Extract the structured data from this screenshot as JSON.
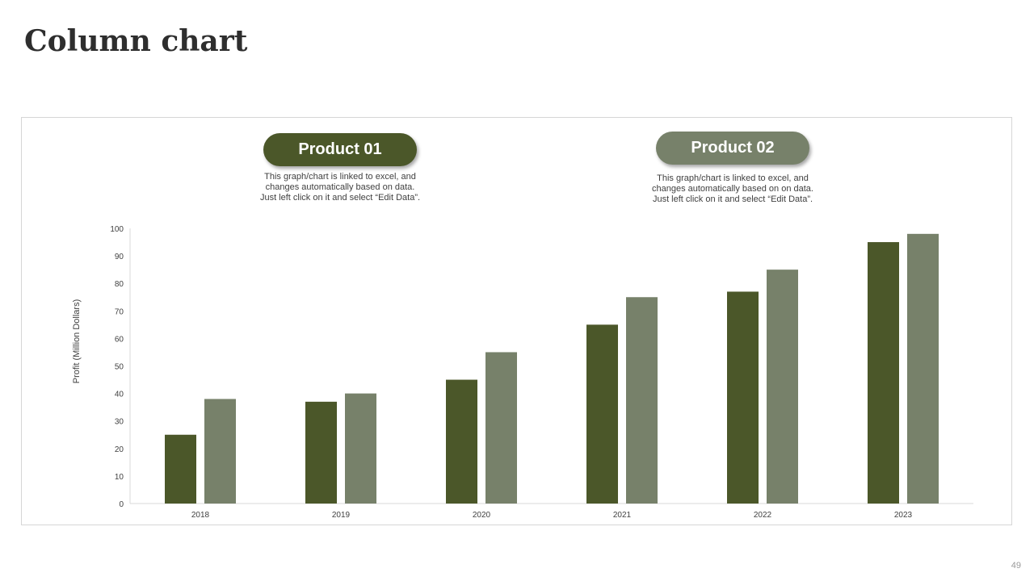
{
  "slide": {
    "title": "Column chart",
    "page_number": "49"
  },
  "callouts": [
    {
      "label": "Product 01",
      "note": "This graph/chart is linked to excel, and changes automatically based on data. Just left click on it and select “Edit Data”."
    },
    {
      "label": "Product 02",
      "note": "This graph/chart is linked to excel, and changes automatically based on on data. Just left click on it and select “Edit Data”."
    }
  ],
  "colors": {
    "product_01": "#4b5729",
    "product_02": "#77816a"
  },
  "chart_data": {
    "type": "bar",
    "categories": [
      "2018",
      "2019",
      "2020",
      "2021",
      "2022",
      "2023"
    ],
    "series": [
      {
        "name": "Product 01",
        "values": [
          25,
          37,
          45,
          65,
          77,
          95
        ]
      },
      {
        "name": "Product 02",
        "values": [
          38,
          40,
          55,
          75,
          85,
          98
        ]
      }
    ],
    "ylabel": "Profit  (Million Dollars)",
    "xlabel": "",
    "ylim": [
      0,
      100
    ],
    "yticks": [
      "0",
      "10",
      "20",
      "30",
      "40",
      "50",
      "60",
      "70",
      "80",
      "90",
      "100"
    ],
    "grid": false,
    "legend": "callouts above chart"
  }
}
